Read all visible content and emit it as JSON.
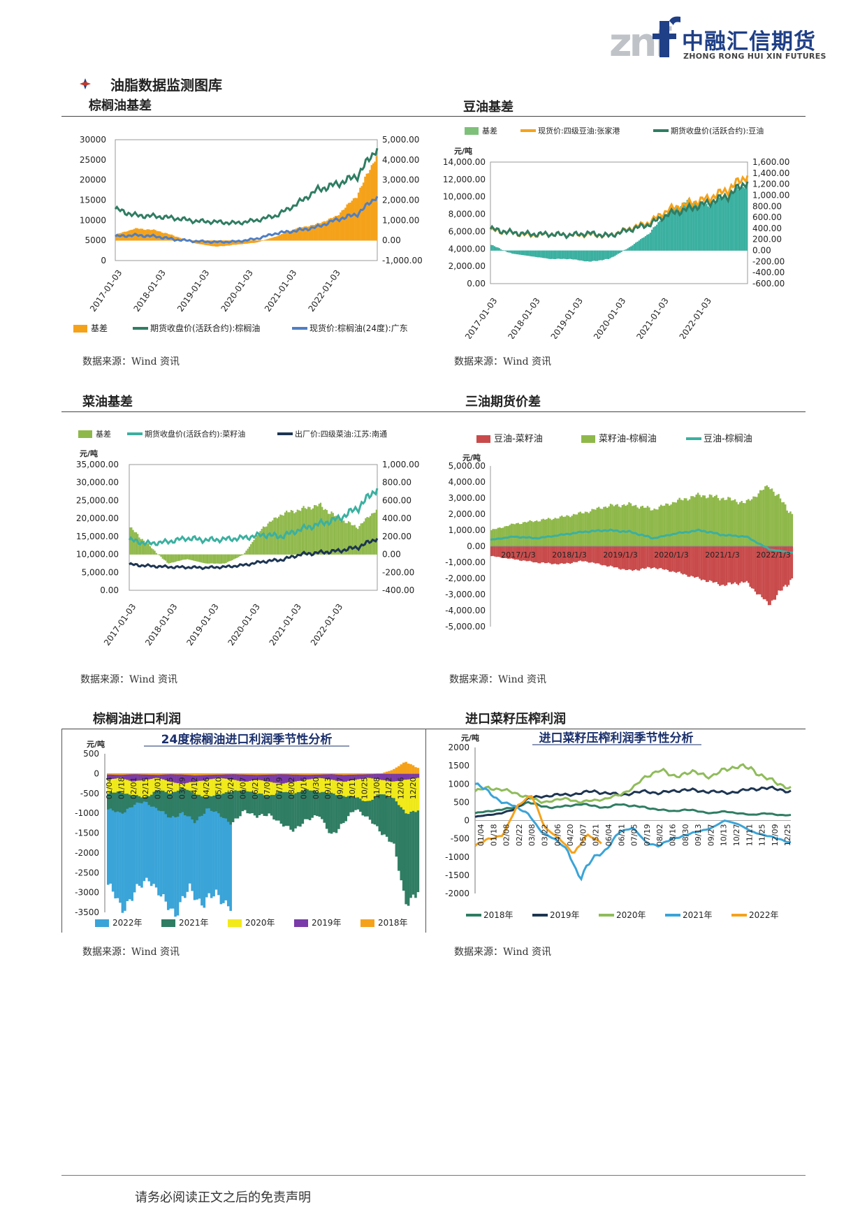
{
  "header": {
    "logo_mark": "znf",
    "logo_cn": "中融汇信期货",
    "logo_en": "ZHONG RONG HUI XIN FUTURES",
    "page_title": "油脂数据监测图库"
  },
  "sections": {
    "palm_basis": "棕榈油基差",
    "soy_basis": "豆油基差",
    "rape_basis": "菜油基差",
    "spread": "三油期货价差",
    "palm_import": "棕榈油进口利润",
    "rape_crush": "进口菜籽压榨利润"
  },
  "source_text": "数据来源：Wind 资讯",
  "footer": "请务必阅读正文之后的免责声明",
  "colors": {
    "orange": "#f5a21b",
    "green": "#2f7d63",
    "blue": "#4f7fc4",
    "lightgreen": "#8fb84a",
    "teal": "#3bb0a0",
    "navy": "#1d3552",
    "red": "#c94a4a",
    "sky": "#3aa4d8",
    "purple": "#7a3aa8",
    "yellow": "#f2ea1a"
  },
  "chart_data": [
    {
      "id": "palm",
      "type": "line",
      "x_ticks": [
        "2017-01-03",
        "2018-01-03",
        "2019-01-03",
        "2020-01-03",
        "2021-01-03",
        "2022-01-03"
      ],
      "yleft_ticks": [
        "30000",
        "25000",
        "20000",
        "15000",
        "10000",
        "5000",
        "0"
      ],
      "yright_ticks": [
        "5,000.00",
        "4,000.00",
        "3,000.00",
        "2,000.00",
        "1,000.00",
        "0.00",
        "-1,000.00"
      ],
      "ylim_left": [
        0,
        30000
      ],
      "ylim_right": [
        -1000,
        5000
      ],
      "legend": [
        "基差",
        "期货收盘价(活跃合约):棕榈油",
        "现货价:棕榈油(24度):广东"
      ],
      "series": [
        {
          "name": "基差",
          "axis": "right",
          "values": [
            300,
            600,
            500,
            200,
            -150,
            -300,
            -200,
            -100,
            200,
            600,
            800,
            1200,
            2200,
            4200
          ]
        },
        {
          "name": "期货收盘价(活跃合约):棕榈油",
          "axis": "left",
          "values": [
            12800,
            11200,
            11000,
            10500,
            9800,
            9600,
            9300,
            10000,
            11200,
            14000,
            17500,
            19000,
            21000,
            28000
          ]
        },
        {
          "name": "现货价:棕榈油(24度):广东",
          "axis": "left",
          "values": [
            6000,
            6300,
            6000,
            5200,
            4800,
            4600,
            4700,
            5400,
            6800,
            7400,
            8300,
            10200,
            11500,
            16000
          ]
        }
      ]
    },
    {
      "id": "soy",
      "type": "line",
      "x_ticks": [
        "2017-01-03",
        "2018-01-03",
        "2019-01-03",
        "2020-01-03",
        "2021-01-03",
        "2022-01-03"
      ],
      "unit": "元/吨",
      "yleft_ticks": [
        "14,000.00",
        "12,000.00",
        "10,000.00",
        "8,000.00",
        "6,000.00",
        "4,000.00",
        "2,000.00",
        "0.00"
      ],
      "yright_ticks": [
        "1,600.00",
        "1,400.00",
        "1,200.00",
        "1,000.00",
        "800.00",
        "600.00",
        "400.00",
        "200.00",
        "0.00",
        "-200.00",
        "-400.00",
        "-600.00"
      ],
      "ylim_left": [
        0,
        14000
      ],
      "ylim_right": [
        -600,
        1600
      ],
      "legend": [
        "基差",
        "现货价:四级豆油:张家港",
        "期货收盘价(活跃合约):豆油"
      ],
      "series": [
        {
          "name": "基差",
          "axis": "right",
          "values": [
            100,
            -50,
            -100,
            -150,
            -150,
            -200,
            -150,
            50,
            300,
            700,
            900,
            800,
            1000,
            1200
          ]
        },
        {
          "name": "现货价:四级豆油:张家港",
          "axis": "left",
          "values": [
            6200,
            5900,
            5600,
            5700,
            5600,
            5700,
            5500,
            6300,
            7000,
            8500,
            9200,
            9800,
            10800,
            12500
          ]
        },
        {
          "name": "期货收盘价(活跃合约):豆油",
          "axis": "left",
          "values": [
            6300,
            5900,
            5700,
            5700,
            5600,
            5800,
            5500,
            6200,
            6800,
            8000,
            8600,
            9300,
            10100,
            11800
          ]
        }
      ]
    },
    {
      "id": "rape",
      "type": "line",
      "x_ticks": [
        "2017-01-03",
        "2018-01-03",
        "2019-01-03",
        "2020-01-03",
        "2021-01-03",
        "2022-01-03"
      ],
      "unit": "元/吨",
      "yleft_ticks": [
        "35,000.00",
        "30,000.00",
        "25,000.00",
        "20,000.00",
        "15,000.00",
        "10,000.00",
        "5,000.00",
        "0.00"
      ],
      "yright_ticks": [
        "1,000.00",
        "800.00",
        "600.00",
        "400.00",
        "200.00",
        "0.00",
        "-200.00",
        "-400.00"
      ],
      "ylim_left": [
        0,
        35000
      ],
      "ylim_right": [
        -400,
        1000
      ],
      "legend": [
        "基差",
        "期货收盘价(活跃合约):菜籽油",
        "出厂价:四级菜油:江苏:南通"
      ],
      "series": [
        {
          "name": "基差",
          "axis": "right",
          "values": [
            300,
            100,
            -100,
            -50,
            -100,
            -100,
            0,
            300,
            450,
            500,
            550,
            400,
            300,
            500
          ]
        },
        {
          "name": "期货收盘价(活跃合约):菜籽油",
          "axis": "left",
          "values": [
            14000,
            13000,
            13500,
            14500,
            14000,
            14200,
            14600,
            15500,
            15000,
            17000,
            18500,
            20000,
            23000,
            28500
          ]
        },
        {
          "name": "出厂价:四级菜油:江苏:南通",
          "axis": "left",
          "values": [
            7200,
            6800,
            6500,
            6400,
            6300,
            6500,
            7000,
            8000,
            8500,
            10000,
            10500,
            11000,
            12000,
            14500
          ]
        }
      ]
    },
    {
      "id": "spread",
      "type": "line",
      "x_ticks": [
        "2017/1/3",
        "2018/1/3",
        "2019/1/3",
        "2020/1/3",
        "2021/1/3",
        "2022/1/3"
      ],
      "unit": "元/吨",
      "y_ticks": [
        "5,000.00",
        "4,000.00",
        "3,000.00",
        "2,000.00",
        "1,000.00",
        "0.00",
        "-1,000.00",
        "-2,000.00",
        "-3,000.00",
        "-4,000.00",
        "-5,000.00"
      ],
      "ylim": [
        -5000,
        5000
      ],
      "legend": [
        "豆油-菜籽油",
        "菜籽油-棕榈油",
        "豆油-棕榈油"
      ],
      "series": [
        {
          "name": "豆油-菜籽油",
          "values": [
            -600,
            -800,
            -1000,
            -1100,
            -900,
            -1200,
            -1500,
            -1300,
            -1600,
            -2000,
            -2400,
            -2200,
            -3600,
            -2000
          ]
        },
        {
          "name": "菜籽油-棕榈油",
          "values": [
            1000,
            1400,
            1600,
            1800,
            2100,
            2500,
            2600,
            2300,
            2800,
            3200,
            3000,
            2700,
            3800,
            2000
          ]
        },
        {
          "name": "豆油-棕榈油",
          "values": [
            400,
            600,
            500,
            700,
            900,
            1000,
            900,
            500,
            800,
            1000,
            700,
            600,
            -200,
            -400
          ]
        }
      ]
    },
    {
      "id": "palm_import",
      "type": "bar",
      "title": "24度棕榈油进口利润季节性分析",
      "unit": "元/吨",
      "y_ticks": [
        "500",
        "0",
        "-500",
        "-1000",
        "-1500",
        "-2000",
        "-2500",
        "-3000",
        "-3500"
      ],
      "ylim": [
        -3500,
        500
      ],
      "x_ticks": [
        "01/04",
        "01/18",
        "02/01",
        "02/15",
        "03/01",
        "03/15",
        "03/29",
        "04/12",
        "04/26",
        "05/10",
        "05/24",
        "06/07",
        "06/21",
        "07/05",
        "07/19",
        "08/02",
        "08/16",
        "08/30",
        "09/13",
        "09/27",
        "10/11",
        "10/25",
        "11/08",
        "11/22",
        "12/06",
        "12/20"
      ],
      "legend": [
        "2022年",
        "2021年",
        "2020年",
        "2019年",
        "2018年"
      ],
      "series": [
        {
          "name": "2022年",
          "values": [
            -2800,
            -3400,
            -3000,
            -2600,
            -3200,
            -3500,
            -2900,
            -3300,
            -3000,
            -3400
          ]
        },
        {
          "name": "2021年",
          "values": [
            -900,
            -1000,
            -800,
            -700,
            -900,
            -1100,
            -1000,
            -1200,
            -900,
            -1000,
            -1300,
            -900,
            -1100,
            -1000,
            -1300,
            -1400,
            -1200,
            -1000,
            -1600,
            -1200,
            -900,
            -1100,
            -1500,
            -1700,
            -3300,
            -2900
          ]
        },
        {
          "name": "2020年",
          "values": [
            -500,
            -450,
            -550,
            -600,
            -400,
            -500,
            -350,
            -500,
            -600,
            -500,
            -450,
            -400,
            -500,
            -550,
            -450,
            -500,
            -400,
            -450,
            -500,
            -550,
            -600,
            -700,
            -500,
            -600,
            -1000,
            -900
          ]
        },
        {
          "name": "2019年",
          "values": [
            -150,
            -100,
            -200,
            -150,
            -100,
            -200,
            -250,
            -200,
            -150,
            -100,
            -150,
            -200,
            -150,
            -200,
            -250,
            -200,
            -150,
            -100,
            -150,
            -200,
            -150,
            -100,
            -150,
            -200,
            -150,
            -100
          ]
        },
        {
          "name": "2018年",
          "values": [
            -20,
            -30,
            -10,
            -20,
            -30,
            -10,
            -20,
            -40,
            -30,
            -20,
            -10,
            -20,
            -30,
            -20,
            -10,
            -20,
            -30,
            -20,
            -10,
            -30,
            -20,
            -10,
            0,
            100,
            300,
            150
          ]
        }
      ]
    },
    {
      "id": "rape_crush",
      "type": "line",
      "title": "进口菜籽压榨利润季节性分析",
      "unit": "元/吨",
      "y_ticks": [
        "2000",
        "1500",
        "1000",
        "500",
        "0",
        "-500",
        "-1000",
        "-1500",
        "-2000"
      ],
      "ylim": [
        -2000,
        2000
      ],
      "x_ticks": [
        "01/04",
        "01/18",
        "02/08",
        "02/22",
        "03/08",
        "03/22",
        "04/06",
        "04/20",
        "05/07",
        "05/21",
        "06/04",
        "06/21",
        "07/05",
        "07/19",
        "08/02",
        "08/16",
        "08/30",
        "09/13",
        "09/27",
        "10/13",
        "10/27",
        "11/11",
        "11/25",
        "12/09",
        "12/25"
      ],
      "legend": [
        "2018年",
        "2019年",
        "2020年",
        "2021年",
        "2022年"
      ],
      "series": [
        {
          "name": "2018年",
          "values": [
            200,
            250,
            300,
            350,
            500,
            400,
            350,
            400,
            450,
            400,
            350,
            450,
            400,
            350,
            300,
            250,
            300,
            250,
            200,
            250,
            200,
            150,
            200,
            150,
            150
          ]
        },
        {
          "name": "2019年",
          "values": [
            100,
            150,
            200,
            300,
            600,
            650,
            700,
            700,
            750,
            800,
            750,
            700,
            750,
            800,
            750,
            800,
            850,
            800,
            800,
            750,
            800,
            850,
            900,
            850,
            800
          ]
        },
        {
          "name": "2020年",
          "values": [
            800,
            900,
            850,
            750,
            650,
            500,
            550,
            600,
            500,
            550,
            600,
            700,
            900,
            1200,
            1400,
            1200,
            1300,
            1300,
            1200,
            1400,
            1500,
            1400,
            1200,
            1000,
            900
          ]
        },
        {
          "name": "2021年",
          "values": [
            1000,
            800,
            500,
            400,
            200,
            -300,
            -500,
            -800,
            -1600,
            -1000,
            -800,
            -300,
            -200,
            -600,
            -700,
            -500,
            -400,
            -300,
            -200,
            0,
            -100,
            -300,
            -400,
            -500,
            -600
          ]
        },
        {
          "name": "2022年",
          "values": [
            -700,
            -500,
            -400,
            400,
            700,
            -200,
            -500,
            -900,
            -400,
            -600
          ]
        }
      ]
    }
  ]
}
